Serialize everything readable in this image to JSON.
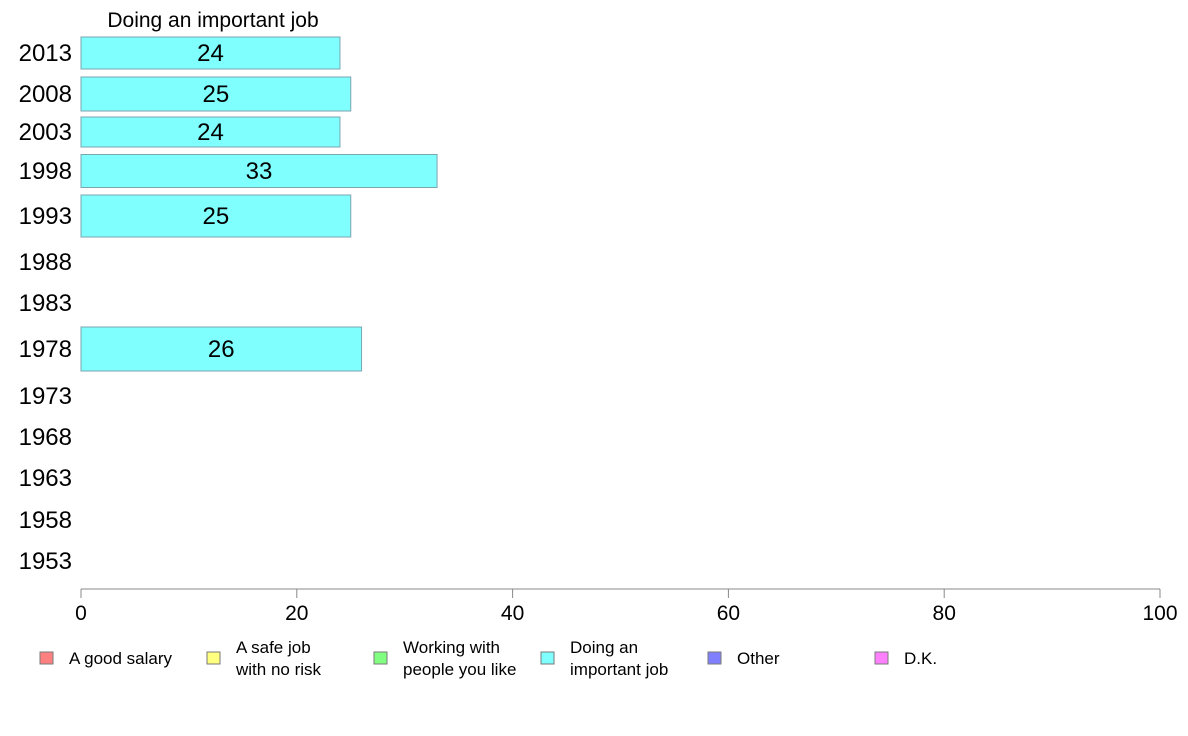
{
  "chart_data": {
    "type": "bar",
    "orientation": "horizontal",
    "title": "Doing an important job",
    "categories": [
      "2013",
      "2008",
      "2003",
      "1998",
      "1993",
      "1988",
      "1983",
      "1978",
      "1973",
      "1968",
      "1963",
      "1958",
      "1953"
    ],
    "series": [
      {
        "name": "Doing an important job",
        "values": [
          24,
          25,
          24,
          33,
          25,
          null,
          null,
          26,
          null,
          null,
          null,
          null,
          null
        ],
        "data_labels": [
          "24",
          "25",
          "24",
          "33",
          "25",
          "",
          "",
          "26",
          "",
          "",
          "",
          "",
          ""
        ]
      }
    ],
    "xlim": [
      0,
      100
    ],
    "x_ticks": [
      "0",
      "20",
      "40",
      "60",
      "80",
      "100"
    ],
    "xlabel": "",
    "ylabel": "",
    "grid": false,
    "legend_position": "bottom",
    "legend": [
      {
        "label": "A good salary",
        "color": "#ff8080"
      },
      {
        "label": "A safe job\nwith no risk",
        "color": "#ffff80"
      },
      {
        "label": "Working with\npeople you like",
        "color": "#80ff80"
      },
      {
        "label": "Doing an\nimportant job",
        "color": "#80ffff"
      },
      {
        "label": "Other",
        "color": "#8080ff"
      },
      {
        "label": "D.K.",
        "color": "#ff80ff"
      }
    ],
    "colors": {
      "bar_fill": "#80ffff",
      "bar_stroke": "#7aa6b0",
      "axis": "#888888"
    }
  }
}
